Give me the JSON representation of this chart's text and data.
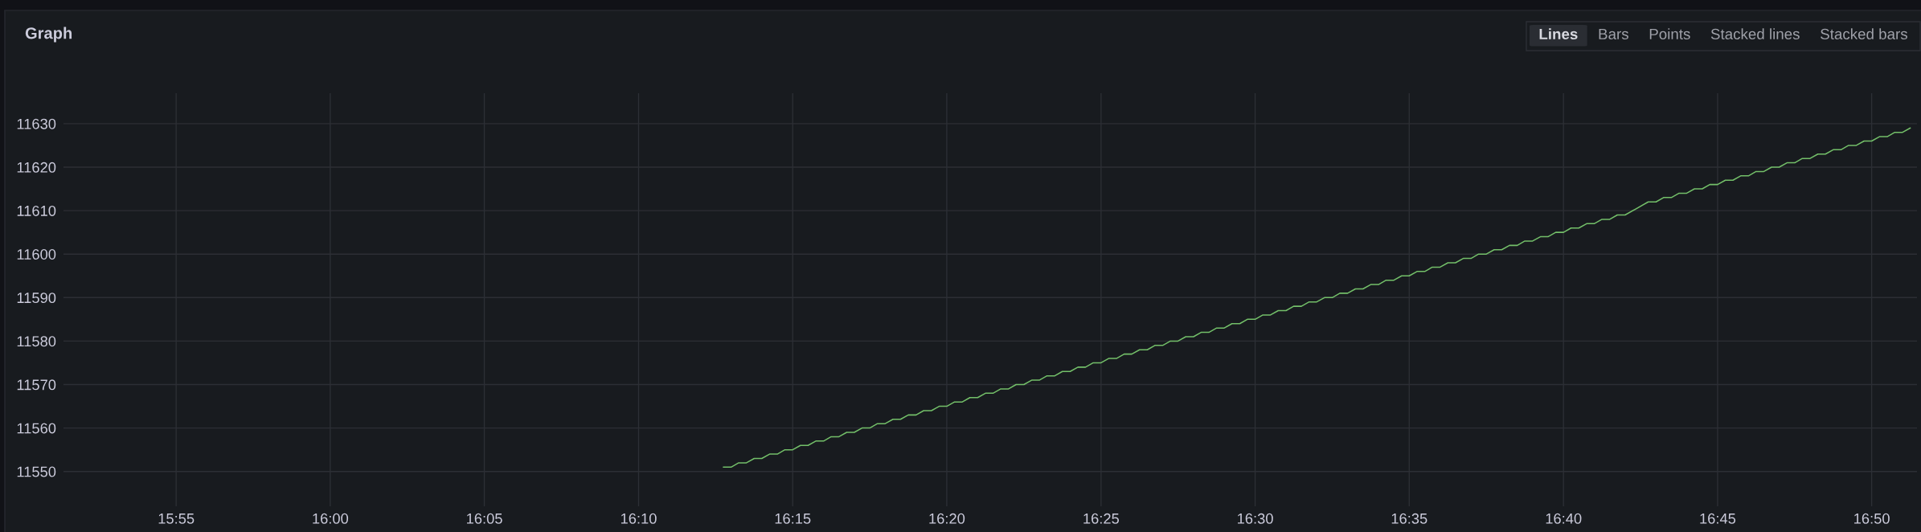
{
  "chart_data": {
    "type": "line",
    "title": "Graph",
    "x": [
      16.2125,
      16.2167,
      16.2208,
      16.225,
      16.2292,
      16.2333,
      16.2375,
      16.2417,
      16.2458,
      16.25,
      16.2542,
      16.2583,
      16.2625,
      16.2667,
      16.2708,
      16.275,
      16.2792,
      16.2833,
      16.2875,
      16.2917,
      16.2958,
      16.3,
      16.3042,
      16.3083,
      16.3125,
      16.3167,
      16.3208,
      16.325,
      16.3292,
      16.3333,
      16.3375,
      16.3417,
      16.3458,
      16.35,
      16.3542,
      16.3583,
      16.3625,
      16.3667,
      16.3708,
      16.375,
      16.3792,
      16.3833,
      16.3875,
      16.3917,
      16.3958,
      16.4,
      16.4042,
      16.4083,
      16.4125,
      16.4167,
      16.4208,
      16.425,
      16.4292,
      16.4333,
      16.4375,
      16.4417,
      16.4458,
      16.45,
      16.4542,
      16.4583,
      16.4625,
      16.4667,
      16.4708,
      16.475,
      16.4792,
      16.4833,
      16.4875,
      16.4917,
      16.4958,
      16.5,
      16.5042,
      16.5083,
      16.5125,
      16.5167,
      16.5208,
      16.525,
      16.5292,
      16.5333,
      16.5375,
      16.5417,
      16.5458,
      16.55,
      16.5542,
      16.5583,
      16.5625,
      16.5667,
      16.5708,
      16.575,
      16.5792,
      16.5833,
      16.5875,
      16.5917,
      16.5958,
      16.6,
      16.6042,
      16.6083,
      16.6125,
      16.6167,
      16.6208,
      16.625,
      16.6292,
      16.6333,
      16.6375,
      16.6417,
      16.6458,
      16.65,
      16.6542,
      16.6583,
      16.6625,
      16.6667,
      16.6708,
      16.675,
      16.6792,
      16.6833,
      16.6875,
      16.6917,
      16.6958,
      16.7,
      16.7125,
      16.7167,
      16.7208,
      16.725,
      16.7292,
      16.7333,
      16.7375,
      16.7417,
      16.7458,
      16.75,
      16.7542,
      16.7583,
      16.7625,
      16.7667,
      16.7708,
      16.775,
      16.7792,
      16.7833,
      16.7875,
      16.7917,
      16.7958,
      16.8,
      16.8042,
      16.8083,
      16.8125,
      16.8167,
      16.8208,
      16.825,
      16.8292,
      16.8333,
      16.8375,
      16.8417,
      16.8458,
      16.85,
      16.8542
    ],
    "series": [
      {
        "color": "#73bf69",
        "values": [
          11551,
          11551,
          11552,
          11552,
          11553,
          11553,
          11554,
          11554,
          11555,
          11555,
          11556,
          11556,
          11557,
          11557,
          11558,
          11558,
          11559,
          11559,
          11560,
          11560,
          11561,
          11561,
          11562,
          11562,
          11563,
          11563,
          11564,
          11564,
          11565,
          11565,
          11566,
          11566,
          11567,
          11567,
          11568,
          11568,
          11569,
          11569,
          11570,
          11570,
          11571,
          11571,
          11572,
          11572,
          11573,
          11573,
          11574,
          11574,
          11575,
          11575,
          11576,
          11576,
          11577,
          11577,
          11578,
          11578,
          11579,
          11579,
          11580,
          11580,
          11581,
          11581,
          11582,
          11582,
          11583,
          11583,
          11584,
          11584,
          11585,
          11585,
          11586,
          11586,
          11587,
          11587,
          11588,
          11588,
          11589,
          11589,
          11590,
          11590,
          11591,
          11591,
          11592,
          11592,
          11593,
          11593,
          11594,
          11594,
          11595,
          11595,
          11596,
          11596,
          11597,
          11597,
          11598,
          11598,
          11599,
          11599,
          11600,
          11600,
          11601,
          11601,
          11602,
          11602,
          11603,
          11603,
          11604,
          11604,
          11605,
          11605,
          11606,
          11606,
          11607,
          11607,
          11608,
          11608,
          11609,
          11609,
          11612,
          11612,
          11613,
          11613,
          11614,
          11614,
          11615,
          11615,
          11616,
          11616,
          11617,
          11617,
          11618,
          11618,
          11619,
          11619,
          11620,
          11620,
          11621,
          11621,
          11622,
          11622,
          11623,
          11623,
          11624,
          11624,
          11625,
          11625,
          11626,
          11626,
          11627,
          11627,
          11628,
          11628,
          11629
        ]
      }
    ],
    "xlim": [
      15.8558,
      16.8578
    ],
    "xticks": [
      {
        "value": 15.9167,
        "label": "15:55"
      },
      {
        "value": 16,
        "label": "16:00"
      },
      {
        "value": 16.0833,
        "label": "16:05"
      },
      {
        "value": 16.1667,
        "label": "16:10"
      },
      {
        "value": 16.25,
        "label": "16:15"
      },
      {
        "value": 16.3333,
        "label": "16:20"
      },
      {
        "value": 16.4167,
        "label": "16:25"
      },
      {
        "value": 16.5,
        "label": "16:30"
      },
      {
        "value": 16.5833,
        "label": "16:35"
      },
      {
        "value": 16.6667,
        "label": "16:40"
      },
      {
        "value": 16.75,
        "label": "16:45"
      },
      {
        "value": 16.8333,
        "label": "16:50"
      }
    ],
    "ylim": [
      11542,
      11637
    ],
    "yticks": [
      11550,
      11560,
      11570,
      11580,
      11590,
      11600,
      11610,
      11620,
      11630
    ],
    "grid": true,
    "annotations": [
      "Lines",
      "Bars",
      "Points",
      "Stacked lines",
      "Stacked bars"
    ]
  }
}
